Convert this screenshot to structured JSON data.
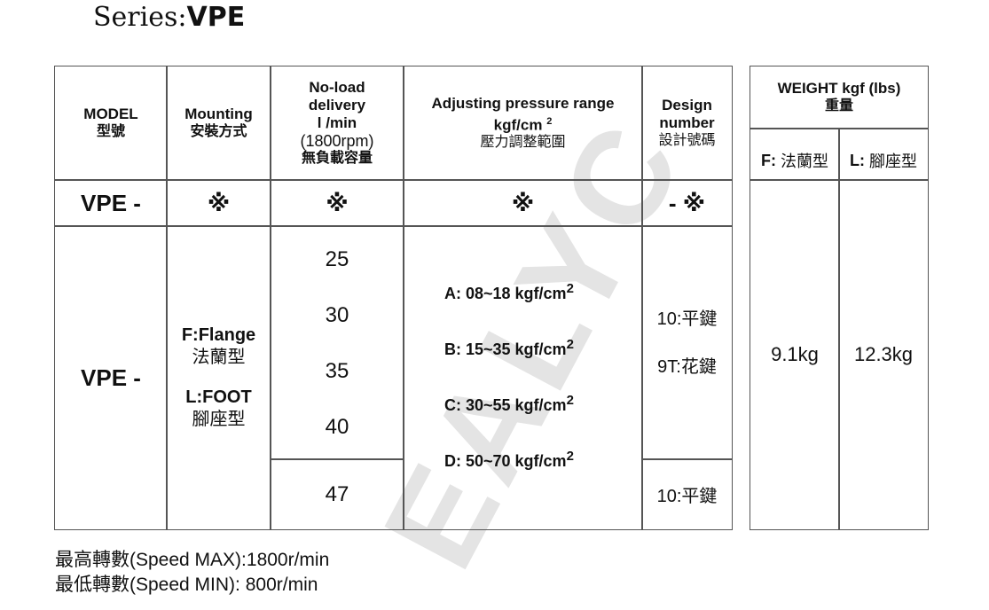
{
  "series_label": "Series:",
  "series_name": "VPE",
  "watermark": "EALYC",
  "headers": {
    "model": [
      "MODEL",
      "型號"
    ],
    "mounting": [
      "Mounting",
      "安裝方式"
    ],
    "delivery": [
      "No-load",
      "delivery",
      "l /min",
      "(1800rpm)",
      "無負載容量"
    ],
    "pressure": [
      "Adjusting pressure range",
      "kgf/cm",
      "2",
      "壓力調整範圍"
    ],
    "design": [
      "Design",
      "number",
      "設計號碼"
    ],
    "weight": [
      "WEIGHT kgf (lbs)",
      "重量"
    ],
    "weight_f": [
      "F:",
      "法蘭型"
    ],
    "weight_l": [
      "L:",
      "腳座型"
    ]
  },
  "code_row": {
    "model": "VPE -",
    "mounting": "※",
    "delivery": "※",
    "pressure": "※",
    "design": "- ※"
  },
  "body": {
    "model": "VPE -",
    "mounting": [
      "F:Flange",
      "法蘭型",
      "L:FOOT",
      "腳座型"
    ],
    "deliveries": [
      "25",
      "30",
      "35",
      "40"
    ],
    "delivery_extra": "47",
    "pressures": [
      {
        "label": "A: 08~18 kgf/cm",
        "sup": "2"
      },
      {
        "label": "B: 15~35 kgf/cm",
        "sup": "2"
      },
      {
        "label": "C: 30~55 kgf/cm",
        "sup": "2"
      },
      {
        "label": "D: 50~70 kgf/cm",
        "sup": "2"
      }
    ],
    "designs": [
      "10:平鍵",
      "9T:花鍵"
    ],
    "design_extra": "10:平鍵",
    "weight_f": "9.1kg",
    "weight_l": "12.3kg"
  },
  "footnotes": [
    "最高轉數(Speed MAX):1800r/min",
    "最低轉數(Speed MIN): 800r/min"
  ]
}
